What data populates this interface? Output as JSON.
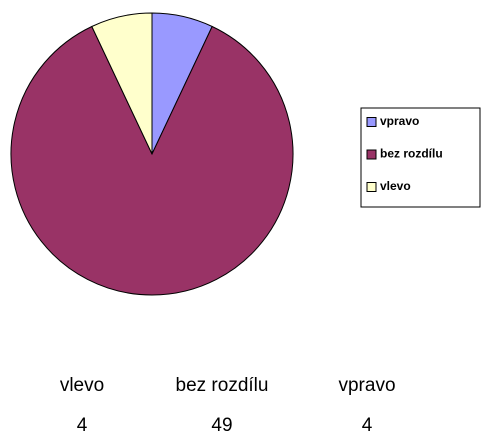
{
  "chart_data": {
    "type": "pie",
    "categories": [
      "vpravo",
      "bez rozdílu",
      "vlevo"
    ],
    "values": [
      4,
      49,
      4
    ],
    "colors": [
      "#9999ff",
      "#993366",
      "#ffffcc"
    ]
  }
}
